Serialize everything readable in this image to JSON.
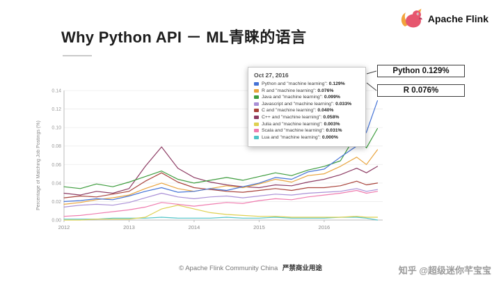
{
  "header": {
    "brand": "Apache Flink",
    "title": "Why Python API － ML青睐的语言"
  },
  "callouts": [
    {
      "label": "Python 0.129%"
    },
    {
      "label": "R 0.076%"
    }
  ],
  "footer": {
    "copyright": "© Apache Flink Community China",
    "notice": "严禁商业用途",
    "watermark": "知乎 @超级迷你芊宝宝"
  },
  "chart_data": {
    "type": "line",
    "title": "",
    "legend_title": "Oct 27, 2016",
    "xlabel": "",
    "ylabel": "Percentage of Matching Job Postings (%)",
    "xlim": [
      2012,
      2016.9
    ],
    "ylim": [
      0,
      0.14
    ],
    "xticks": [
      2012,
      2013,
      2014,
      2015,
      2016
    ],
    "yticks": [
      0.0,
      0.02,
      0.04,
      0.06,
      0.08,
      0.1,
      0.12,
      0.14
    ],
    "grid": true,
    "legend_position": "overlay-top-right",
    "x": [
      2012.0,
      2012.25,
      2012.5,
      2012.75,
      2013.0,
      2013.25,
      2013.5,
      2013.75,
      2014.0,
      2014.25,
      2014.5,
      2014.75,
      2015.0,
      2015.25,
      2015.5,
      2015.75,
      2016.0,
      2016.25,
      2016.5,
      2016.65,
      2016.82
    ],
    "series": [
      {
        "name": "Python",
        "label": "Python and \"machine learning\":",
        "value_label": "0.129%",
        "color": "#4472d6",
        "values": [
          0.02,
          0.021,
          0.023,
          0.022,
          0.026,
          0.031,
          0.035,
          0.03,
          0.031,
          0.034,
          0.032,
          0.036,
          0.04,
          0.046,
          0.044,
          0.052,
          0.055,
          0.068,
          0.08,
          0.095,
          0.129
        ]
      },
      {
        "name": "R",
        "label": "R and \"machine learning\":",
        "value_label": "0.076%",
        "color": "#e8a33c",
        "values": [
          0.017,
          0.019,
          0.022,
          0.024,
          0.027,
          0.034,
          0.04,
          0.034,
          0.031,
          0.034,
          0.037,
          0.035,
          0.039,
          0.044,
          0.041,
          0.048,
          0.05,
          0.058,
          0.068,
          0.06,
          0.076
        ]
      },
      {
        "name": "Java",
        "label": "Java and \"machine learning\":",
        "value_label": "0.099%",
        "color": "#3d9c3d",
        "values": [
          0.036,
          0.034,
          0.039,
          0.036,
          0.041,
          0.047,
          0.053,
          0.044,
          0.04,
          0.043,
          0.046,
          0.043,
          0.047,
          0.051,
          0.048,
          0.054,
          0.058,
          0.064,
          0.093,
          0.078,
          0.099
        ]
      },
      {
        "name": "Javascript",
        "label": "Javascript and \"machine learning\":",
        "value_label": "0.033%",
        "color": "#a98fd6",
        "values": [
          0.014,
          0.016,
          0.017,
          0.016,
          0.019,
          0.024,
          0.029,
          0.025,
          0.023,
          0.025,
          0.026,
          0.024,
          0.026,
          0.028,
          0.027,
          0.029,
          0.03,
          0.031,
          0.034,
          0.031,
          0.033
        ]
      },
      {
        "name": "C",
        "label": "C and \"machine learning\":",
        "value_label": "0.040%",
        "color": "#a8423a",
        "values": [
          0.024,
          0.026,
          0.025,
          0.028,
          0.031,
          0.042,
          0.051,
          0.041,
          0.035,
          0.033,
          0.031,
          0.03,
          0.032,
          0.034,
          0.032,
          0.035,
          0.035,
          0.037,
          0.042,
          0.038,
          0.04
        ]
      },
      {
        "name": "C++",
        "label": "C++ and \"machine learning\":",
        "value_label": "0.058%",
        "color": "#8c3a62",
        "values": [
          0.029,
          0.027,
          0.031,
          0.029,
          0.034,
          0.058,
          0.079,
          0.056,
          0.046,
          0.041,
          0.038,
          0.036,
          0.035,
          0.038,
          0.037,
          0.041,
          0.044,
          0.049,
          0.056,
          0.051,
          0.058
        ]
      },
      {
        "name": "Julia",
        "label": "Julia and \"machine learning\":",
        "value_label": "0.003%",
        "color": "#ded04f",
        "values": [
          0.0,
          0.0,
          0.001,
          0.001,
          0.001,
          0.003,
          0.012,
          0.016,
          0.012,
          0.008,
          0.006,
          0.005,
          0.004,
          0.004,
          0.003,
          0.003,
          0.003,
          0.003,
          0.004,
          0.003,
          0.003
        ]
      },
      {
        "name": "Scala",
        "label": "Scala and \"machine learning\":",
        "value_label": "0.031%",
        "color": "#ef7bae",
        "values": [
          0.004,
          0.005,
          0.007,
          0.009,
          0.011,
          0.014,
          0.019,
          0.017,
          0.015,
          0.017,
          0.019,
          0.018,
          0.021,
          0.023,
          0.022,
          0.025,
          0.027,
          0.029,
          0.032,
          0.029,
          0.031
        ]
      },
      {
        "name": "Lua",
        "label": "Lua and \"machine learning\":",
        "value_label": "0.000%",
        "color": "#4fc3c7",
        "values": [
          0.001,
          0.001,
          0.001,
          0.002,
          0.002,
          0.002,
          0.003,
          0.002,
          0.002,
          0.002,
          0.003,
          0.002,
          0.002,
          0.003,
          0.002,
          0.002,
          0.002,
          0.003,
          0.003,
          0.002,
          0.0
        ]
      }
    ]
  }
}
